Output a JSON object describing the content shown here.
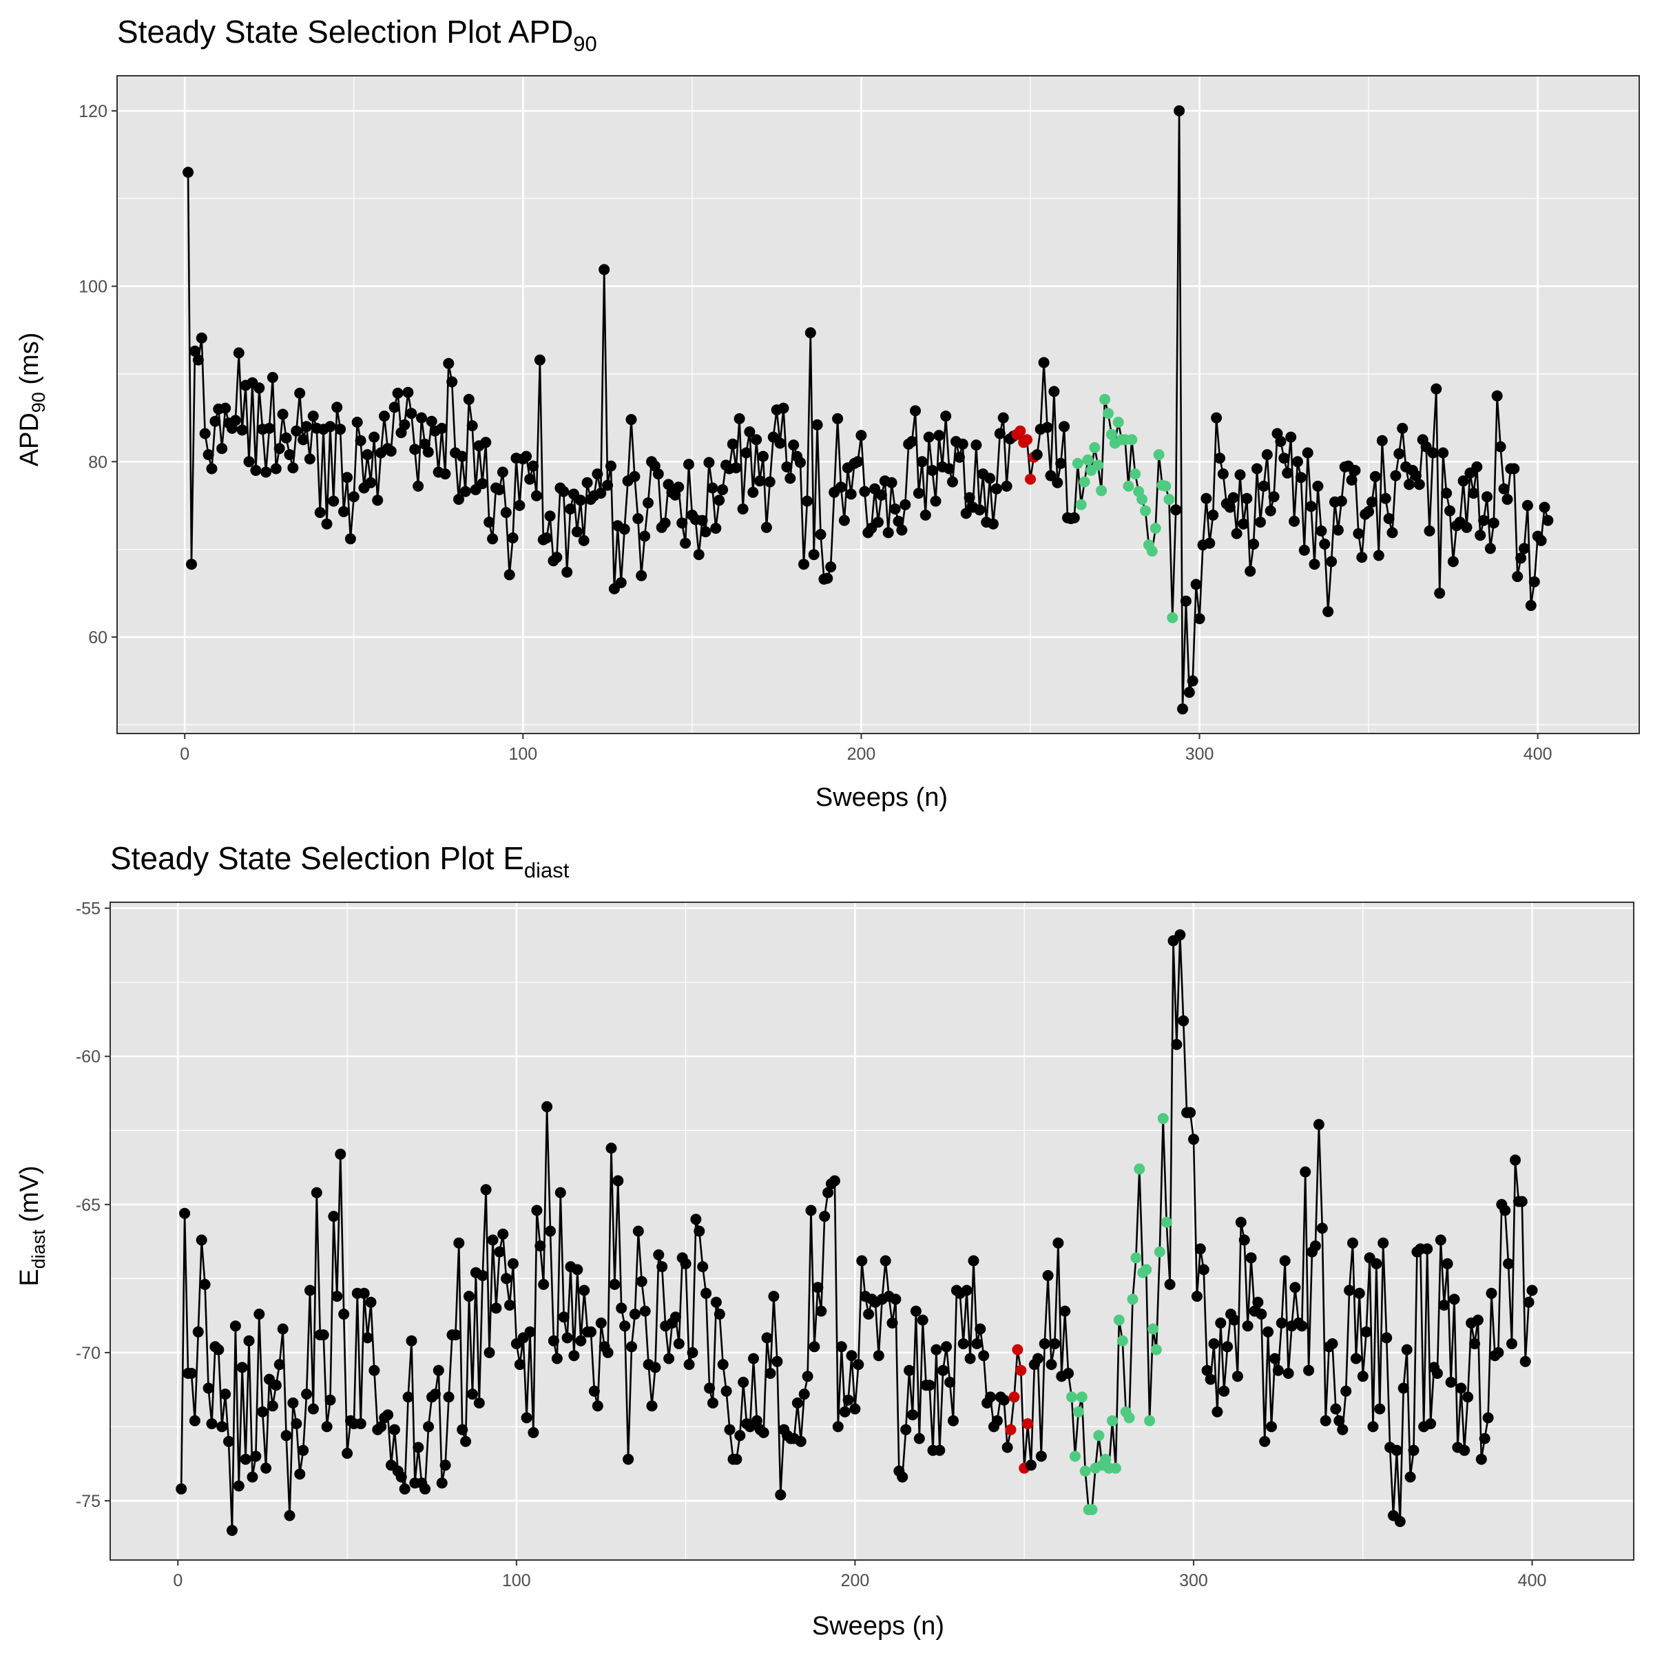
{
  "charts": [
    {
      "title_main": "Steady State Selection Plot APD",
      "title_sub": "90",
      "xlabel": "Sweeps (n)",
      "ylabel_main": "APD",
      "ylabel_sub": "90",
      "ylabel_suffix": " (ms)"
    },
    {
      "title_main": "Steady State Selection Plot E",
      "title_sub": "diast",
      "xlabel": "Sweeps (n)",
      "ylabel_main": "E",
      "ylabel_sub": "diast",
      "ylabel_suffix": " (mV)"
    }
  ],
  "colors": {
    "panel_bg": "#e5e5e5",
    "grid": "#ffffff",
    "line": "#000000",
    "point_default": "#000000",
    "point_red": "#cc0000",
    "point_green": "#4ecb80"
  },
  "chart_data": [
    {
      "type": "scatter",
      "title": "Steady State Selection Plot APD90",
      "xlabel": "Sweeps (n)",
      "ylabel": "APD90 (ms)",
      "xlim": [
        -20,
        430
      ],
      "ylim": [
        49,
        124
      ],
      "xticks": [
        0,
        100,
        200,
        300,
        400
      ],
      "yticks": [
        60,
        80,
        100,
        120
      ],
      "x_start": 1,
      "highlight_red": [
        246,
        251
      ],
      "highlight_green": [
        264,
        292
      ],
      "values": [
        113.0,
        68.3,
        92.6,
        91.6,
        94.1,
        83.2,
        80.8,
        79.2,
        84.6,
        86.0,
        81.5,
        86.1,
        84.4,
        83.8,
        84.7,
        92.4,
        83.6,
        88.7,
        80.0,
        89.0,
        79.0,
        88.4,
        83.7,
        78.8,
        83.8,
        89.6,
        79.2,
        81.5,
        85.4,
        82.7,
        80.8,
        79.3,
        83.5,
        87.8,
        82.5,
        84.0,
        80.3,
        85.2,
        83.8,
        74.2,
        83.7,
        72.9,
        84.0,
        75.5,
        86.2,
        83.7,
        74.3,
        78.2,
        71.2,
        76.0,
        84.5,
        82.4,
        77.0,
        80.8,
        77.6,
        82.8,
        75.6,
        81.0,
        85.2,
        81.5,
        81.2,
        86.2,
        87.8,
        83.3,
        84.2,
        87.9,
        85.5,
        81.4,
        77.2,
        85.0,
        82.0,
        81.1,
        84.6,
        83.5,
        78.8,
        83.8,
        78.6,
        91.2,
        89.1,
        81.0,
        75.7,
        80.6,
        76.6,
        87.1,
        84.1,
        76.8,
        81.8,
        77.5,
        82.2,
        73.1,
        71.2,
        77.0,
        76.8,
        78.8,
        74.2,
        67.1,
        71.3,
        80.4,
        75.0,
        80.3,
        80.6,
        78.0,
        79.5,
        76.1,
        91.6,
        71.1,
        71.3,
        73.8,
        68.7,
        69.1,
        77.0,
        76.6,
        67.4,
        74.6,
        76.3,
        72.0,
        75.6,
        71.0,
        77.6,
        75.7,
        76.1,
        78.6,
        76.4,
        101.9,
        77.3,
        79.5,
        65.5,
        72.7,
        66.2,
        72.3,
        77.8,
        84.8,
        78.3,
        73.5,
        67.0,
        71.5,
        75.3,
        80.0,
        79.5,
        78.6,
        72.5,
        73.0,
        77.4,
        76.5,
        76.2,
        77.1,
        73.0,
        70.7,
        79.7,
        73.9,
        73.4,
        69.4,
        73.3,
        72.0,
        79.9,
        77.0,
        72.4,
        75.6,
        76.8,
        79.6,
        79.2,
        82.0,
        79.3,
        84.9,
        74.6,
        81.0,
        83.4,
        76.5,
        82.5,
        77.8,
        80.6,
        72.5,
        77.7,
        82.8,
        85.9,
        82.1,
        86.1,
        79.4,
        78.1,
        81.9,
        80.6,
        79.9,
        68.3,
        75.5,
        94.7,
        69.4,
        84.2,
        71.7,
        66.6,
        66.7,
        68.0,
        76.5,
        84.9,
        77.1,
        73.3,
        79.3,
        76.3,
        79.8,
        80.0,
        83.0,
        76.6,
        71.9,
        72.4,
        76.9,
        73.1,
        76.2,
        77.8,
        71.9,
        77.6,
        74.6,
        73.2,
        72.2,
        75.1,
        82.0,
        82.3,
        85.8,
        76.4,
        80.0,
        73.9,
        82.8,
        79.0,
        75.5,
        83.0,
        79.4,
        85.2,
        79.2,
        77.7,
        82.3,
        80.5,
        82.0,
        74.1,
        75.9,
        74.8,
        81.9,
        74.5,
        78.6,
        73.1,
        78.1,
        72.9,
        76.9,
        83.2,
        85.0,
        77.2,
        82.6,
        82.9,
        83.1,
        83.5,
        82.2,
        82.5,
        78.0,
        80.5,
        80.8,
        83.7,
        91.3,
        83.9,
        78.4,
        88.0,
        77.6,
        79.8,
        84.0,
        73.6,
        73.5,
        73.6,
        79.8,
        75.1,
        77.7,
        80.2,
        79.0,
        81.6,
        79.6,
        76.7,
        87.1,
        85.5,
        83.1,
        82.1,
        84.5,
        82.5,
        82.5,
        77.2,
        82.5,
        78.6,
        76.6,
        75.7,
        74.4,
        70.5,
        69.8,
        72.4,
        80.8,
        77.3,
        77.2,
        75.7,
        62.2,
        74.5,
        120.0,
        51.8,
        64.1,
        53.7,
        55.0,
        66.0,
        62.1,
        70.5,
        75.8,
        70.7,
        73.9,
        85.0,
        80.4,
        78.6,
        75.2,
        74.8,
        75.9,
        71.8,
        78.5,
        72.9,
        75.8,
        67.5,
        70.6,
        79.2,
        73.1,
        77.2,
        80.8,
        74.4,
        76.0,
        83.2,
        82.3,
        80.4,
        78.7,
        82.8,
        73.2,
        80.0,
        78.2,
        69.9,
        81.0,
        74.9,
        68.3,
        77.2,
        72.1,
        70.6,
        62.9,
        68.6,
        75.4,
        72.2,
        75.5,
        79.4,
        79.5,
        77.9,
        79.0,
        71.8,
        69.1,
        74.0,
        74.3,
        75.4,
        78.3,
        69.3,
        82.4,
        75.8,
        73.5,
        71.9,
        78.4,
        80.9,
        83.8,
        79.4,
        77.4,
        79.0,
        78.4,
        77.4,
        82.5,
        81.7,
        72.1,
        81.0,
        88.3,
        65.0,
        81.0,
        76.4,
        74.4,
        68.6,
        72.7,
        73.1,
        77.8,
        72.5,
        78.7,
        76.4,
        79.4,
        71.6,
        73.3,
        76.0,
        70.1,
        73.0,
        87.5,
        81.7,
        76.9,
        75.7,
        79.2,
        79.2,
        66.9,
        69.0,
        70.1,
        75.0,
        63.6,
        66.3,
        71.5,
        71.0,
        74.8,
        73.3
      ]
    },
    {
      "type": "scatter",
      "title": "Steady State Selection Plot Ediast",
      "xlabel": "Sweeps (n)",
      "ylabel": "Ediast (mV)",
      "xlim": [
        -20,
        430
      ],
      "ylim": [
        -77,
        -54.8
      ],
      "xticks": [
        0,
        100,
        200,
        300,
        400
      ],
      "yticks": [
        -75,
        -70,
        -65,
        -60,
        -55
      ],
      "x_start": 1,
      "highlight_red": [
        246,
        251
      ],
      "highlight_green": [
        264,
        292
      ],
      "values": [
        -74.6,
        -65.3,
        -70.7,
        -70.7,
        -72.3,
        -69.3,
        -66.2,
        -67.7,
        -71.2,
        -72.4,
        -69.8,
        -69.9,
        -72.5,
        -71.4,
        -73.0,
        -76.0,
        -69.1,
        -74.5,
        -70.5,
        -73.6,
        -69.6,
        -74.2,
        -73.5,
        -68.7,
        -72.0,
        -73.9,
        -70.9,
        -71.8,
        -71.1,
        -70.4,
        -69.2,
        -72.8,
        -75.5,
        -71.7,
        -72.4,
        -74.1,
        -73.3,
        -71.4,
        -67.9,
        -71.9,
        -64.6,
        -69.4,
        -69.4,
        -72.5,
        -71.6,
        -65.4,
        -68.1,
        -63.3,
        -68.7,
        -73.4,
        -72.3,
        -72.4,
        -68.0,
        -72.4,
        -68.0,
        -69.5,
        -68.3,
        -70.6,
        -72.6,
        -72.5,
        -72.2,
        -72.1,
        -73.8,
        -72.6,
        -74.0,
        -74.2,
        -74.6,
        -71.5,
        -69.6,
        -74.4,
        -73.2,
        -74.4,
        -74.6,
        -72.5,
        -71.5,
        -71.4,
        -70.6,
        -74.4,
        -73.8,
        -71.5,
        -69.4,
        -69.4,
        -66.3,
        -72.6,
        -73.0,
        -68.1,
        -71.4,
        -67.3,
        -71.7,
        -67.4,
        -64.5,
        -70.0,
        -66.2,
        -68.5,
        -66.6,
        -66.0,
        -67.5,
        -68.4,
        -67.0,
        -69.7,
        -70.4,
        -69.5,
        -72.2,
        -69.3,
        -72.7,
        -65.2,
        -66.4,
        -67.7,
        -61.7,
        -65.9,
        -69.6,
        -70.2,
        -64.6,
        -68.8,
        -69.5,
        -67.1,
        -70.1,
        -67.2,
        -69.6,
        -67.9,
        -69.3,
        -69.3,
        -71.3,
        -71.8,
        -69.0,
        -69.8,
        -70.0,
        -63.1,
        -67.7,
        -64.2,
        -68.5,
        -69.1,
        -73.6,
        -69.8,
        -68.7,
        -65.9,
        -67.6,
        -68.6,
        -70.4,
        -71.8,
        -70.5,
        -66.7,
        -67.1,
        -69.1,
        -70.2,
        -69.0,
        -68.8,
        -69.7,
        -66.8,
        -67.0,
        -70.4,
        -70.0,
        -65.5,
        -65.9,
        -67.1,
        -68.0,
        -71.2,
        -71.7,
        -68.3,
        -68.7,
        -70.4,
        -71.3,
        -72.6,
        -73.6,
        -73.6,
        -72.8,
        -71.0,
        -72.4,
        -72.5,
        -70.2,
        -72.3,
        -72.6,
        -72.7,
        -69.5,
        -70.7,
        -68.1,
        -70.3,
        -74.8,
        -72.6,
        -72.8,
        -72.9,
        -72.9,
        -71.7,
        -73.0,
        -71.4,
        -70.8,
        -65.2,
        -69.8,
        -67.8,
        -68.6,
        -65.4,
        -64.6,
        -64.3,
        -64.2,
        -72.5,
        -69.8,
        -72.0,
        -71.6,
        -70.1,
        -71.9,
        -70.4,
        -66.9,
        -68.1,
        -68.7,
        -68.2,
        -68.3,
        -70.1,
        -68.2,
        -66.9,
        -68.1,
        -69.0,
        -68.2,
        -74.0,
        -74.2,
        -72.6,
        -70.6,
        -72.1,
        -68.6,
        -72.9,
        -68.9,
        -71.1,
        -71.1,
        -73.3,
        -69.9,
        -73.3,
        -70.6,
        -69.8,
        -71.0,
        -72.3,
        -67.9,
        -68.0,
        -69.7,
        -67.9,
        -70.2,
        -66.9,
        -69.7,
        -69.2,
        -70.1,
        -71.7,
        -71.5,
        -72.5,
        -72.3,
        -71.5,
        -71.6,
        -73.2,
        -72.6,
        -71.5,
        -69.9,
        -70.6,
        -73.9,
        -72.4,
        -73.8,
        -70.4,
        -70.2,
        -73.5,
        -69.7,
        -67.4,
        -70.4,
        -69.7,
        -66.3,
        -70.8,
        -68.6,
        -70.7,
        -71.5,
        -73.5,
        -72.0,
        -71.5,
        -74.0,
        -75.3,
        -75.3,
        -73.9,
        -72.8,
        -73.8,
        -73.6,
        -73.9,
        -72.3,
        -73.9,
        -68.9,
        -69.6,
        -72.0,
        -72.2,
        -68.2,
        -66.8,
        -63.8,
        -67.3,
        -67.2,
        -72.3,
        -69.2,
        -69.9,
        -66.6,
        -62.1,
        -65.6,
        -67.7,
        -56.1,
        -59.6,
        -55.9,
        -58.8,
        -61.9,
        -61.9,
        -62.8,
        -68.1,
        -66.5,
        -67.2,
        -70.6,
        -70.9,
        -69.7,
        -72.0,
        -69.0,
        -71.3,
        -69.8,
        -68.7,
        -68.9,
        -70.8,
        -65.6,
        -66.2,
        -69.1,
        -66.8,
        -68.6,
        -68.3,
        -68.7,
        -73.0,
        -69.3,
        -72.5,
        -70.2,
        -70.6,
        -69.0,
        -66.9,
        -70.7,
        -69.1,
        -67.8,
        -69.0,
        -69.1,
        -63.9,
        -70.6,
        -66.6,
        -66.4,
        -62.3,
        -65.8,
        -72.3,
        -69.8,
        -69.7,
        -71.9,
        -72.3,
        -72.6,
        -71.3,
        -67.9,
        -66.3,
        -70.2,
        -68.0,
        -70.8,
        -69.3,
        -66.8,
        -72.5,
        -67.0,
        -71.9,
        -66.3,
        -69.5,
        -73.2,
        -75.5,
        -73.3,
        -75.7,
        -71.2,
        -69.9,
        -74.2,
        -73.3,
        -66.6,
        -66.5,
        -72.5,
        -66.5,
        -72.4,
        -70.5,
        -70.7,
        -66.2,
        -68.4,
        -67.0,
        -71.0,
        -68.2,
        -73.2,
        -71.2,
        -73.3,
        -71.5,
        -69.0,
        -69.7,
        -68.9,
        -73.6,
        -72.9,
        -72.2,
        -68.0,
        -70.1,
        -70.0,
        -65.0,
        -65.2,
        -67.0,
        -69.7,
        -63.5,
        -64.9,
        -64.9,
        -70.3,
        -68.3,
        -67.9
      ]
    }
  ]
}
